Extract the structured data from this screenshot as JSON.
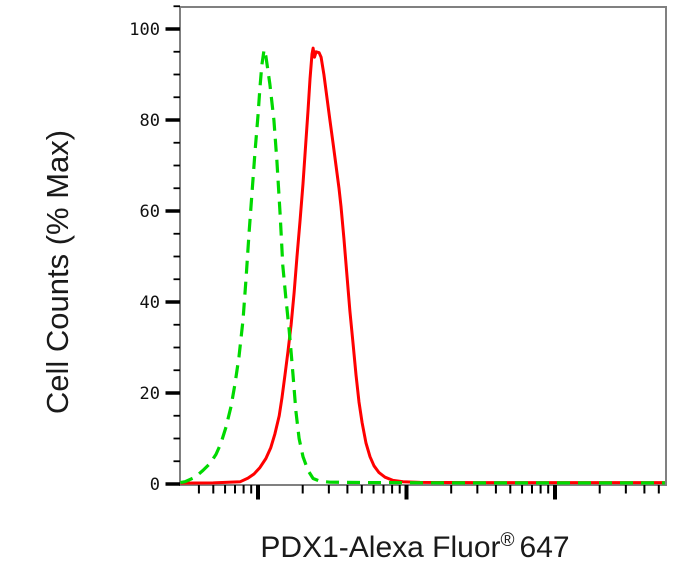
{
  "figure": {
    "background": "#ffffff",
    "frame_color": "#808080",
    "tick_color": "#000000"
  },
  "chart_data": {
    "type": "line",
    "subtype": "flow-cytometry-histogram-overlay",
    "title": "",
    "xlabel": "PDX1-Alexa Fluor® 647",
    "xlabel_parts": {
      "main": "PDX1-Alexa Fluor",
      "sup": "®",
      "suffix": "647"
    },
    "ylabel": "Cell Counts (% Max)",
    "x_scale": "log10",
    "x_domain": [
      3,
      5600
    ],
    "x_major_ticks": [
      10,
      100,
      1000
    ],
    "x_minor_tick_mantissas": [
      2,
      3,
      4,
      5,
      6,
      7,
      8,
      9
    ],
    "x_tick_labels_shown": false,
    "y_domain": [
      0,
      105
    ],
    "y_major_ticks": [
      0,
      20,
      40,
      60,
      80,
      100
    ],
    "y_minor_step": 5,
    "grid": false,
    "legend_position": "none",
    "series": [
      {
        "name": "green-dashed-curve",
        "color": "#00D900",
        "style": "dashed",
        "line_width": 3.2,
        "points": [
          [
            3.0,
            0.3
          ],
          [
            3.23,
            0.5
          ],
          [
            3.77,
            1.5
          ],
          [
            4.26,
            3
          ],
          [
            4.75,
            4.5
          ],
          [
            5.21,
            6.5
          ],
          [
            5.63,
            9
          ],
          [
            6.09,
            12.5
          ],
          [
            6.58,
            17
          ],
          [
            7.0,
            22
          ],
          [
            7.45,
            28
          ],
          [
            7.93,
            36
          ],
          [
            8.3,
            45
          ],
          [
            8.7,
            55
          ],
          [
            9.11,
            64
          ],
          [
            9.55,
            73
          ],
          [
            10.0,
            81
          ],
          [
            10.3,
            87
          ],
          [
            10.6,
            92
          ],
          [
            11.0,
            95.5
          ],
          [
            11.3,
            94
          ],
          [
            12.0,
            88
          ],
          [
            12.8,
            80
          ],
          [
            13.4,
            71
          ],
          [
            14.1,
            59
          ],
          [
            14.7,
            48
          ],
          [
            15.4,
            41
          ],
          [
            16.2,
            34
          ],
          [
            16.7,
            29
          ],
          [
            17.2,
            24
          ],
          [
            18.0,
            16
          ],
          [
            18.9,
            10
          ],
          [
            20.1,
            6
          ],
          [
            21.7,
            3
          ],
          [
            23.5,
            1.2
          ],
          [
            26.2,
            0.6
          ],
          [
            30.5,
            0.4
          ],
          [
            60,
            0.3
          ],
          [
            200,
            0.25
          ],
          [
            1000,
            0.25
          ],
          [
            5500,
            0.25
          ]
        ]
      },
      {
        "name": "red-solid-curve",
        "color": "#FF0000",
        "style": "solid",
        "line_width": 3,
        "points": [
          [
            3.0,
            0.2
          ],
          [
            5.0,
            0.25
          ],
          [
            7.6,
            0.5
          ],
          [
            8.56,
            1.3
          ],
          [
            9.4,
            2.2
          ],
          [
            10.3,
            3.6
          ],
          [
            11.3,
            5.6
          ],
          [
            12.2,
            8
          ],
          [
            13.0,
            11
          ],
          [
            13.9,
            15
          ],
          [
            14.5,
            19
          ],
          [
            15.2,
            24
          ],
          [
            15.9,
            29
          ],
          [
            16.7,
            35
          ],
          [
            17.5,
            42
          ],
          [
            18.3,
            50
          ],
          [
            19.2,
            58
          ],
          [
            20.1,
            66
          ],
          [
            21.0,
            75
          ],
          [
            21.7,
            82
          ],
          [
            22.4,
            89
          ],
          [
            23.1,
            94.5
          ],
          [
            23.5,
            95.8
          ],
          [
            24.0,
            93.8
          ],
          [
            24.6,
            95
          ],
          [
            25.8,
            94.8
          ],
          [
            26.6,
            93.8
          ],
          [
            27.8,
            90
          ],
          [
            29.1,
            85
          ],
          [
            30.5,
            80
          ],
          [
            32.0,
            75
          ],
          [
            33.5,
            70
          ],
          [
            35.1,
            65
          ],
          [
            36.2,
            61
          ],
          [
            37.9,
            54
          ],
          [
            39.7,
            46
          ],
          [
            41.6,
            38
          ],
          [
            43.6,
            31
          ],
          [
            45.7,
            24
          ],
          [
            47.9,
            18
          ],
          [
            50.2,
            13.5
          ],
          [
            53.4,
            9
          ],
          [
            56.8,
            6
          ],
          [
            60.4,
            4
          ],
          [
            65.3,
            2.5
          ],
          [
            71.6,
            1.5
          ],
          [
            81.1,
            0.8
          ],
          [
            94.7,
            0.5
          ],
          [
            123,
            0.35
          ],
          [
            300,
            0.3
          ],
          [
            1500,
            0.3
          ],
          [
            5500,
            0.3
          ]
        ]
      }
    ]
  }
}
